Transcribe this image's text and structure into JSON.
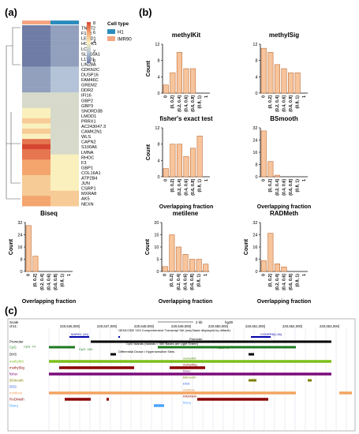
{
  "panel_labels": {
    "a": "(a)",
    "b": "(b)",
    "c": "(c)"
  },
  "heatmap": {
    "genes": [
      "TNNT2",
      "F11R",
      "LEMD1",
      "HOOK1",
      "LCK",
      "SLC16A1",
      "L1TD1",
      "LIN28A",
      "CDKN2C",
      "DUSP16",
      "FAM46C",
      "GREM2",
      "DDR2",
      "IFI16",
      "GBP2",
      "GBP3",
      "SNORD3B",
      "LMOD1",
      "PRRX1",
      "AC243047.3",
      "CAMK2N1",
      "WLS",
      "CAPN2",
      "S100A6",
      "LMNA",
      "RHOC",
      "F3",
      "GBP1",
      "COL16A1",
      "ATP2B4",
      "JUN",
      "CSRP1",
      "MXRA8",
      "AK5",
      "NEXN"
    ],
    "cell_type_title": "Cell type",
    "cell_types": [
      {
        "name": "H1",
        "color": "#2b8cbe"
      },
      {
        "name": "IMR90",
        "color": "#f4a582"
      }
    ],
    "scale_ticks": [
      "8",
      "6",
      "4",
      "2",
      "0"
    ],
    "h1_values": [
      1,
      1,
      1,
      1,
      1,
      1,
      1,
      1,
      2,
      2,
      2,
      2,
      2,
      3,
      3,
      3,
      3,
      3,
      3,
      3,
      3,
      3,
      3,
      3,
      3,
      4,
      4,
      4,
      4,
      4,
      4,
      4,
      5,
      5,
      5
    ],
    "imr90_values": [
      0,
      0,
      0,
      0,
      0,
      0,
      0,
      0,
      1,
      1,
      1,
      1,
      1,
      3,
      3,
      3,
      4,
      4,
      5,
      4,
      5,
      4,
      7,
      8,
      7,
      7,
      6,
      6,
      6,
      5,
      5,
      5,
      5,
      6,
      6
    ]
  },
  "chart_data": [
    {
      "type": "bar",
      "title": "methylKit",
      "xlabel": "",
      "ylabel": "Count",
      "ylim": [
        0,
        12
      ],
      "yticks": [
        0,
        4,
        8,
        12
      ],
      "categories": [
        "0",
        "(0, 0.2]",
        "(0.2, 0.4]",
        "(0.4, 0.6]",
        "(0.6, 0.8]",
        "(0.8, 1)",
        "1"
      ],
      "values": [
        2,
        5,
        10,
        6,
        6,
        0,
        0
      ]
    },
    {
      "type": "bar",
      "title": "methylSig",
      "xlabel": "",
      "ylabel": "",
      "ylim": [
        0,
        12
      ],
      "yticks": [
        0,
        4,
        8,
        12
      ],
      "categories": [
        "0",
        "(0, 0.2]",
        "(0.2, 0.4]",
        "(0.4, 0.6]",
        "(0.6, 0.8]",
        "(0.8, 1)",
        "1"
      ],
      "values": [
        11,
        10,
        7,
        6,
        5,
        5,
        0
      ]
    },
    {
      "type": "bar",
      "title": "fisher's exact test",
      "xlabel": "Overlapping fraction",
      "ylabel": "Count",
      "ylim": [
        0,
        12
      ],
      "yticks": [
        0,
        4,
        8,
        12
      ],
      "categories": [
        "0",
        "(0, 0.2]",
        "(0.2, 0.4]",
        "(0.4, 0.6]",
        "(0.6, 0.8]",
        "(0.8, 1)",
        "1"
      ],
      "values": [
        2,
        8,
        8,
        5,
        7,
        10,
        0
      ]
    },
    {
      "type": "bar",
      "title": "BSmooth",
      "xlabel": "Overlapping fraction",
      "ylabel": "",
      "ylim": [
        0,
        32
      ],
      "yticks": [
        0,
        8,
        16,
        24,
        32
      ],
      "categories": [
        "0",
        "(0, 0.2]",
        "(0.2, 0.4]",
        "(0.4, 0.6]",
        "(0.6, 0.8]",
        "(0.8, 1)",
        "1"
      ],
      "values": [
        30,
        10,
        1,
        0,
        0,
        0,
        0
      ]
    },
    {
      "type": "bar",
      "title": "Biseq",
      "xlabel": "Overlapping fraction",
      "ylabel": "Count",
      "ylim": [
        0,
        32
      ],
      "yticks": [
        0,
        8,
        16,
        24,
        32
      ],
      "categories": [
        "0",
        "(0, 0.2]",
        "(0.2, 0.4]",
        "(0.4, 0.6]",
        "(0.6, 0.8]",
        "(0.8, 1)",
        "1"
      ],
      "values": [
        30,
        10,
        0,
        0,
        0,
        0,
        0
      ]
    },
    {
      "type": "bar",
      "title": "metilene",
      "xlabel": "Overlapping fraction",
      "ylabel": "Count",
      "ylim": [
        0,
        20
      ],
      "yticks": [
        0,
        5,
        10,
        15,
        20
      ],
      "categories": [
        "0",
        "(0, 0.2]",
        "(0.2, 0.4]",
        "(0.4, 0.6]",
        "(0.6, 0.8]",
        "(0.8, 1)",
        "1"
      ],
      "values": [
        2,
        15,
        10,
        7,
        5,
        5,
        3
      ]
    },
    {
      "type": "bar",
      "title": "RADMeth",
      "xlabel": "Overlapping fraction",
      "ylabel": "Count",
      "ylim": [
        0,
        32
      ],
      "yticks": [
        0,
        8,
        16,
        24,
        32
      ],
      "categories": [
        "0",
        "(0, 0.2]",
        "(0.2, 0.4]",
        "(0.4, 0.6]",
        "(0.6, 0.8]",
        "(0.8, 1)",
        "1"
      ],
      "values": [
        7,
        25,
        5,
        3,
        0,
        0,
        0
      ]
    }
  ],
  "browser": {
    "scale_label": "Scale",
    "scale_value": "2 kb",
    "assembly": "hg38",
    "chrom": "chr1:",
    "ruler": [
      "220,646,000|",
      "220,647,000|",
      "220,648,000|",
      "220,649,000|",
      "220,650,000|",
      "220,651,000|",
      "220,652,000|",
      "220,653,000|"
    ],
    "gencode_caption": "GENCODE V24 Comprehensive Transcript Set (only Basic displayed by default)",
    "gene_left": "MARK1 (1b)",
    "gene_right": "CHORP8(1,4b)",
    "cpg_caption": "CpG Islands (Islands < 300 Bases are Light Green)",
    "cpg_labels": [
      "CpG: 74",
      "CpG: 184",
      "CpG: 17"
    ],
    "dhs_caption": "Differential Dnase I Hypersensitive Sites",
    "tracks": [
      {
        "name": "Promoter",
        "color": "#000000"
      },
      {
        "name": "CpG",
        "color": "#2e8b2e"
      },
      {
        "name": "DHS",
        "color": "#000000"
      },
      {
        "name": "methylKit",
        "color": "#7cbf1a"
      },
      {
        "name": "methylSig",
        "color": "#8b0000"
      },
      {
        "name": "fisher",
        "color": "#7b0b7b"
      },
      {
        "name": "BSmooth",
        "color": "#808000"
      },
      {
        "name": "DSS",
        "color": "#2255dd"
      },
      {
        "name": "metilene",
        "color": "#f4a460"
      },
      {
        "name": "RADMeth",
        "color": "#8b0000"
      },
      {
        "name": "Biseq",
        "color": "#4da3ff"
      }
    ],
    "inline_labels": {
      "promoter": "Promoter",
      "methylKit": "methylKit",
      "methylSig": "methylSig",
      "fisher": "fisher",
      "BSmooth": "BSmooth",
      "DSS": "DSS",
      "metilene": "metilene",
      "RADMeth": "RADMeth",
      "Biseq": "Biseq"
    }
  }
}
